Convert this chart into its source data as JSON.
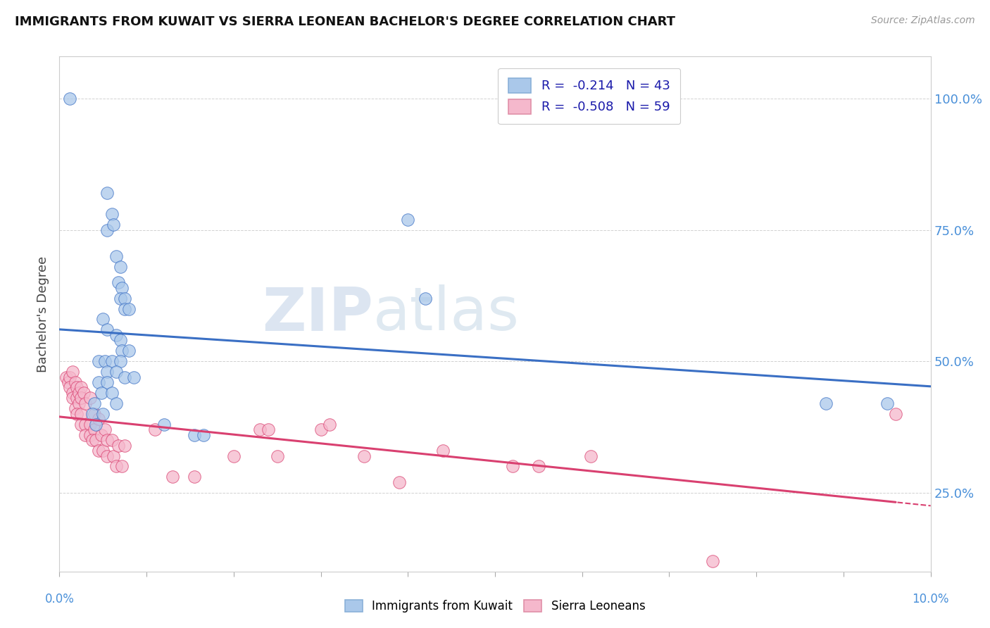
{
  "title": "IMMIGRANTS FROM KUWAIT VS SIERRA LEONEAN BACHELOR'S DEGREE CORRELATION CHART",
  "source": "Source: ZipAtlas.com",
  "ylabel": "Bachelor's Degree",
  "y_ticks": [
    0.25,
    0.5,
    0.75,
    1.0
  ],
  "y_tick_labels": [
    "25.0%",
    "50.0%",
    "75.0%",
    "100.0%"
  ],
  "xlim": [
    0.0,
    10.0
  ],
  "ylim": [
    0.1,
    1.08
  ],
  "legend_r1": "R =  -0.214   N = 43",
  "legend_r2": "R =  -0.508   N = 59",
  "color_blue": "#aac8ea",
  "color_pink": "#f5b8cc",
  "line_color_blue": "#3a6fc4",
  "line_color_pink": "#d94070",
  "watermark_zip": "ZIP",
  "watermark_atlas": "atlas",
  "kuwait_points": [
    [
      0.12,
      1.0
    ],
    [
      0.55,
      0.82
    ],
    [
      0.6,
      0.78
    ],
    [
      0.55,
      0.75
    ],
    [
      0.62,
      0.76
    ],
    [
      0.65,
      0.7
    ],
    [
      0.7,
      0.68
    ],
    [
      0.68,
      0.65
    ],
    [
      0.72,
      0.64
    ],
    [
      0.7,
      0.62
    ],
    [
      0.75,
      0.62
    ],
    [
      0.75,
      0.6
    ],
    [
      0.8,
      0.6
    ],
    [
      0.5,
      0.58
    ],
    [
      0.55,
      0.56
    ],
    [
      0.65,
      0.55
    ],
    [
      0.7,
      0.54
    ],
    [
      0.72,
      0.52
    ],
    [
      0.8,
      0.52
    ],
    [
      0.45,
      0.5
    ],
    [
      0.52,
      0.5
    ],
    [
      0.6,
      0.5
    ],
    [
      0.7,
      0.5
    ],
    [
      0.55,
      0.48
    ],
    [
      0.65,
      0.48
    ],
    [
      0.75,
      0.47
    ],
    [
      0.85,
      0.47
    ],
    [
      0.45,
      0.46
    ],
    [
      0.55,
      0.46
    ],
    [
      0.48,
      0.44
    ],
    [
      0.6,
      0.44
    ],
    [
      0.4,
      0.42
    ],
    [
      0.65,
      0.42
    ],
    [
      0.38,
      0.4
    ],
    [
      0.5,
      0.4
    ],
    [
      0.42,
      0.38
    ],
    [
      1.2,
      0.38
    ],
    [
      1.55,
      0.36
    ],
    [
      1.65,
      0.36
    ],
    [
      4.0,
      0.77
    ],
    [
      4.2,
      0.62
    ],
    [
      8.8,
      0.42
    ],
    [
      9.5,
      0.42
    ]
  ],
  "sierra_points": [
    [
      0.08,
      0.47
    ],
    [
      0.1,
      0.46
    ],
    [
      0.12,
      0.47
    ],
    [
      0.15,
      0.48
    ],
    [
      0.12,
      0.45
    ],
    [
      0.15,
      0.44
    ],
    [
      0.18,
      0.46
    ],
    [
      0.2,
      0.45
    ],
    [
      0.15,
      0.43
    ],
    [
      0.2,
      0.43
    ],
    [
      0.22,
      0.44
    ],
    [
      0.25,
      0.45
    ],
    [
      0.18,
      0.41
    ],
    [
      0.22,
      0.42
    ],
    [
      0.25,
      0.43
    ],
    [
      0.28,
      0.44
    ],
    [
      0.2,
      0.4
    ],
    [
      0.25,
      0.4
    ],
    [
      0.3,
      0.42
    ],
    [
      0.35,
      0.43
    ],
    [
      0.25,
      0.38
    ],
    [
      0.3,
      0.38
    ],
    [
      0.35,
      0.38
    ],
    [
      0.4,
      0.4
    ],
    [
      0.3,
      0.36
    ],
    [
      0.35,
      0.36
    ],
    [
      0.4,
      0.37
    ],
    [
      0.45,
      0.39
    ],
    [
      0.38,
      0.35
    ],
    [
      0.42,
      0.35
    ],
    [
      0.48,
      0.36
    ],
    [
      0.52,
      0.37
    ],
    [
      0.45,
      0.33
    ],
    [
      0.5,
      0.33
    ],
    [
      0.55,
      0.35
    ],
    [
      0.6,
      0.35
    ],
    [
      0.55,
      0.32
    ],
    [
      0.62,
      0.32
    ],
    [
      0.68,
      0.34
    ],
    [
      0.75,
      0.34
    ],
    [
      0.65,
      0.3
    ],
    [
      0.72,
      0.3
    ],
    [
      1.1,
      0.37
    ],
    [
      1.3,
      0.28
    ],
    [
      1.55,
      0.28
    ],
    [
      2.0,
      0.32
    ],
    [
      2.3,
      0.37
    ],
    [
      2.4,
      0.37
    ],
    [
      2.5,
      0.32
    ],
    [
      3.0,
      0.37
    ],
    [
      3.1,
      0.38
    ],
    [
      3.5,
      0.32
    ],
    [
      3.9,
      0.27
    ],
    [
      4.4,
      0.33
    ],
    [
      5.2,
      0.3
    ],
    [
      5.5,
      0.3
    ],
    [
      6.1,
      0.32
    ],
    [
      7.5,
      0.12
    ],
    [
      9.6,
      0.4
    ]
  ]
}
